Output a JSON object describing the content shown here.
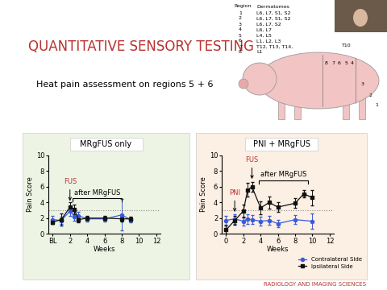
{
  "slide": {
    "title": "QUANTITATIVE SENSORY TESTING",
    "subtitle": "Heat pain assessment on regions 5 + 6",
    "region_table": {
      "header": [
        "Region",
        "Dermatomes"
      ],
      "rows": [
        [
          "1",
          "L6, L7, S1, S2"
        ],
        [
          "2",
          "L6, L7, S1, S2"
        ],
        [
          "3",
          "L6, L7, S2"
        ],
        [
          "4",
          "L6, L7"
        ],
        [
          "5",
          "L4, L5"
        ],
        [
          "6",
          "L1, L2, L3"
        ],
        [
          "7",
          "T12, T13, T14,"
        ],
        [
          "8",
          "L1"
        ]
      ]
    },
    "pig_label": "T10",
    "footer": "RADIOLOGY AND IMAGING SCIENCES"
  },
  "chart_data": [
    {
      "type": "line",
      "title": "MRgFUS only",
      "x_label": "Weeks",
      "y_label": "Pain Score",
      "xlim": [
        -0.5,
        12.5
      ],
      "ylim": [
        0,
        10
      ],
      "xticks": [
        {
          "value": 0,
          "label": "BL"
        },
        2,
        4,
        6,
        8,
        10,
        12
      ],
      "yticks": [
        0,
        2,
        4,
        6,
        8,
        10
      ],
      "reference_line": 3,
      "series": [
        {
          "name": "Contralateral Side",
          "color": "#3b5bdb",
          "marker": "o",
          "line_style": "solid",
          "x": [
            0,
            1,
            2,
            2.5,
            3,
            4,
            6,
            8,
            9
          ],
          "values": [
            1.8,
            1.7,
            2.9,
            2.2,
            2.3,
            1.9,
            1.9,
            2.4,
            1.8
          ],
          "errors": [
            0.5,
            0.5,
            0.6,
            0.5,
            0.5,
            0.3,
            0.3,
            2.0,
            0.3
          ]
        },
        {
          "name": "Ipsilateral Side",
          "color": "#111111",
          "marker": "s",
          "line_style": "solid",
          "x": [
            0,
            1,
            2,
            2.5,
            3,
            4,
            6,
            8,
            9
          ],
          "values": [
            1.5,
            1.8,
            3.4,
            3.1,
            1.8,
            2.0,
            2.0,
            1.9,
            1.9
          ],
          "errors": [
            0.3,
            0.8,
            0.6,
            0.6,
            0.3,
            0.3,
            0.3,
            0.3,
            0.3
          ]
        }
      ],
      "annotations": [
        {
          "text": "FUS",
          "x": 2,
          "y": 3.9
        }
      ],
      "spans": [
        {
          "text": "after MRgFUS",
          "x_range": [
            2.3,
            8
          ],
          "y": 4.5
        }
      ]
    },
    {
      "type": "line",
      "title": "PNI + MRgFUS",
      "x_label": "Weeks",
      "y_label": "Pain Score",
      "xlim": [
        -0.5,
        12.5
      ],
      "ylim": [
        0,
        10
      ],
      "xticks": [
        0,
        2,
        4,
        6,
        8,
        10,
        12
      ],
      "yticks": [
        0,
        2,
        4,
        6,
        8,
        10
      ],
      "reference_line": 3,
      "legend": "lower right",
      "series": [
        {
          "name": "Contralateral Side",
          "color": "#3b5bdb",
          "marker": "o",
          "line_style": "solid",
          "x": [
            0,
            1,
            2,
            2.5,
            3,
            4,
            5,
            6,
            8,
            10
          ],
          "values": [
            1.7,
            1.9,
            1.6,
            1.9,
            1.8,
            1.6,
            1.7,
            1.3,
            1.8,
            1.6
          ],
          "errors": [
            0.6,
            0.6,
            0.6,
            0.6,
            0.6,
            0.6,
            0.6,
            0.5,
            0.6,
            1.0
          ]
        },
        {
          "name": "Ipsilateral Side",
          "color": "#111111",
          "marker": "s",
          "line_style": "solid",
          "x": [
            0,
            1,
            2,
            2.5,
            3,
            4,
            5,
            6,
            8,
            9,
            10
          ],
          "values": [
            0.5,
            1.7,
            2.9,
            5.6,
            6.0,
            3.3,
            4.0,
            3.4,
            3.9,
            5.1,
            4.6
          ],
          "errors": [
            0.5,
            0.6,
            0.8,
            0.9,
            0.6,
            0.8,
            0.8,
            0.6,
            0.6,
            0.5,
            1.0
          ]
        }
      ],
      "annotations": [
        {
          "text": "PNI",
          "x": 1,
          "y": 2.5
        },
        {
          "text": "FUS",
          "x": 3,
          "y": 6.7
        }
      ],
      "spans": [
        {
          "text": "after MRgFUS",
          "x_range": [
            3.8,
            9.5
          ],
          "y": 6.8
        }
      ]
    }
  ]
}
